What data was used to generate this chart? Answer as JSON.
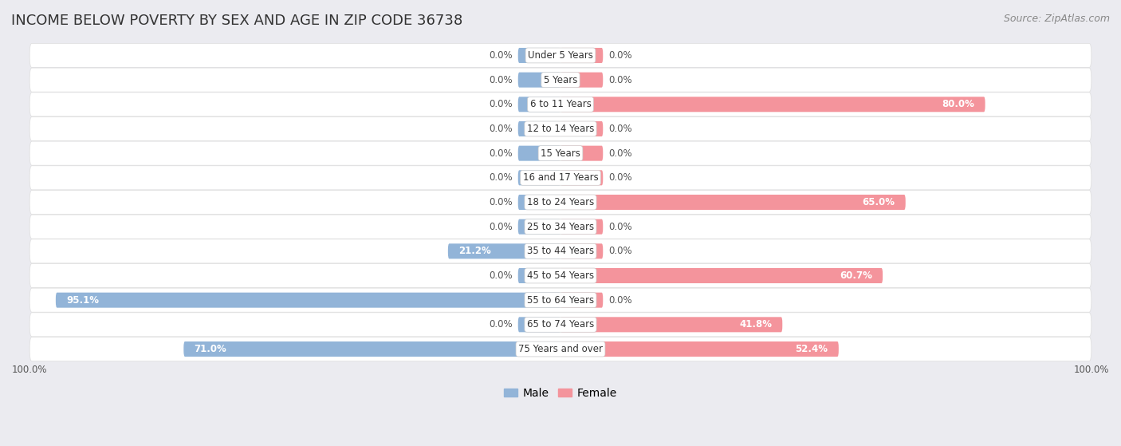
{
  "title": "INCOME BELOW POVERTY BY SEX AND AGE IN ZIP CODE 36738",
  "source": "Source: ZipAtlas.com",
  "categories": [
    "Under 5 Years",
    "5 Years",
    "6 to 11 Years",
    "12 to 14 Years",
    "15 Years",
    "16 and 17 Years",
    "18 to 24 Years",
    "25 to 34 Years",
    "35 to 44 Years",
    "45 to 54 Years",
    "55 to 64 Years",
    "65 to 74 Years",
    "75 Years and over"
  ],
  "male_values": [
    0.0,
    0.0,
    0.0,
    0.0,
    0.0,
    0.0,
    0.0,
    0.0,
    21.2,
    0.0,
    95.1,
    0.0,
    71.0
  ],
  "female_values": [
    0.0,
    0.0,
    80.0,
    0.0,
    0.0,
    0.0,
    65.0,
    0.0,
    0.0,
    60.7,
    0.0,
    41.8,
    52.4
  ],
  "male_color": "#92b4d8",
  "female_color": "#f4949c",
  "male_label": "Male",
  "female_label": "Female",
  "background_color": "#ebebf0",
  "bar_background": "#ffffff",
  "axis_limit": 100.0,
  "title_fontsize": 13,
  "source_fontsize": 9,
  "label_fontsize": 8.5,
  "legend_fontsize": 10,
  "default_bar_extent": 8.0
}
